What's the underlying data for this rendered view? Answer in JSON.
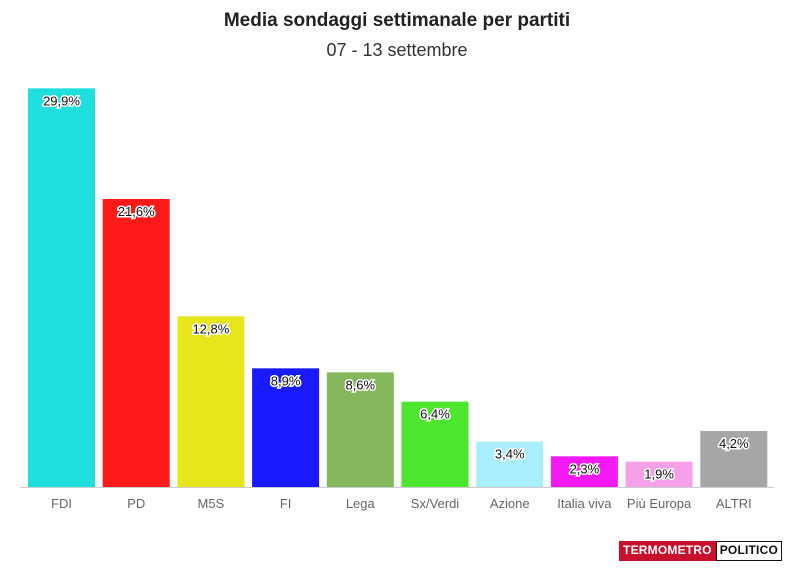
{
  "header": {
    "title": "Media sondaggi settimanale per partiti",
    "subtitle": "07 - 13 settembre"
  },
  "logo": {
    "part1": "TERMOMETRO",
    "part2": "POLITICO"
  },
  "chart_data": {
    "type": "bar",
    "title": "Media sondaggi settimanale per partiti",
    "subtitle": "07 - 13 settembre",
    "categories": [
      "FDI",
      "PD",
      "M5S",
      "FI",
      "Lega",
      "Sx/Verdi",
      "Azione",
      "Italia viva",
      "Più Europa",
      "ALTRI"
    ],
    "values": [
      29.9,
      21.6,
      12.8,
      8.9,
      8.6,
      6.4,
      3.4,
      2.3,
      1.9,
      4.2
    ],
    "labels": [
      "29,9%",
      "21,6%",
      "12,8%",
      "8,9%",
      "8,6%",
      "6,4%",
      "3,4%",
      "2,3%",
      "1,9%",
      "4,2%"
    ],
    "colors": [
      "#1fdede",
      "#ff1a1a",
      "#e6e61a",
      "#1a1aff",
      "#85b85c",
      "#4de62e",
      "#a8eefc",
      "#f51af5",
      "#f5a0e8",
      "#a6a6a6"
    ],
    "ylim": [
      0,
      30
    ],
    "grid": false,
    "legend": "none"
  }
}
